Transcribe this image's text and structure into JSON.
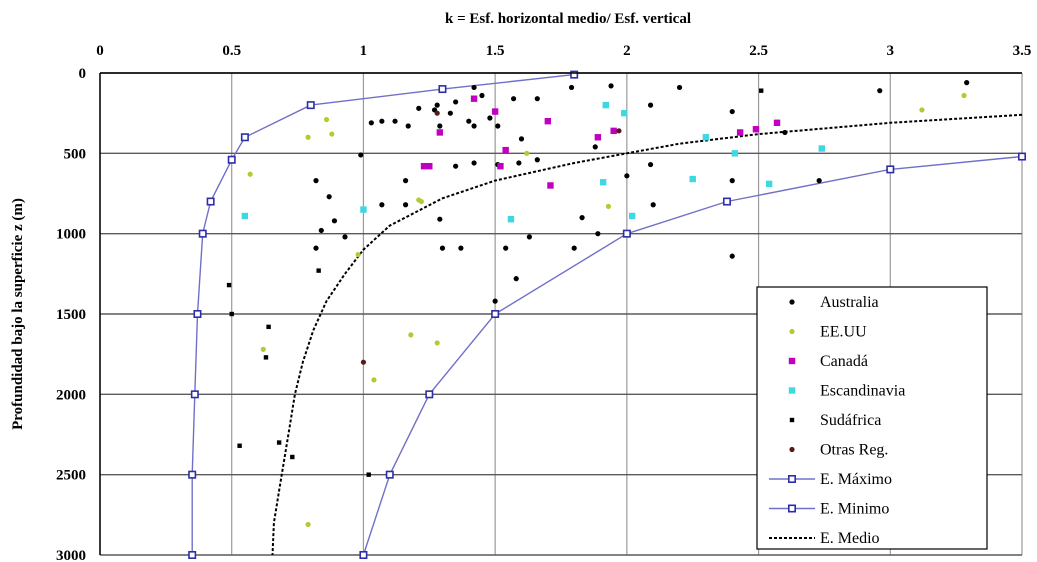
{
  "chart_data": {
    "type": "scatter",
    "title": "k = Esf. horizontal medio/ Esf. vertical",
    "xlabel": "",
    "ylabel": "Profundidad bajo la superficie  z (m)",
    "xlim": [
      0,
      3.5
    ],
    "ylim": [
      0,
      3000
    ],
    "y_inverted": true,
    "x_axis_position": "top",
    "x_ticks": [
      "0",
      "0.5",
      "1",
      "1.5",
      "2",
      "2.5",
      "3",
      "3.5"
    ],
    "y_ticks": [
      "0",
      "500",
      "1000",
      "1500",
      "2000",
      "2500",
      "3000"
    ],
    "grid": "horizontal and vertical",
    "legend_position": "bottom-right",
    "series": [
      {
        "name": "Australia",
        "kind": "points",
        "marker": "dot",
        "color": "#000000",
        "x": [
          1.42,
          1.45,
          1.35,
          1.28,
          1.12,
          1.03,
          1.07,
          1.21,
          1.27,
          1.33,
          1.4,
          1.48,
          1.57,
          1.66,
          1.79,
          1.94,
          2.09,
          2.2,
          2.4,
          2.6,
          2.96,
          3.29,
          1.17,
          1.29,
          1.42,
          1.51,
          1.6,
          1.66,
          1.88,
          2.0,
          2.09,
          2.4,
          2.73,
          0.82,
          0.93,
          1.16,
          1.3,
          1.58,
          1.37,
          1.54,
          1.63,
          1.8,
          1.89,
          1.83,
          2.1,
          0.87,
          0.84,
          0.82,
          0.99,
          0.89,
          1.07,
          1.16,
          1.29,
          1.35,
          1.42,
          1.51,
          1.59,
          1.5,
          2.4
        ],
        "y": [
          90,
          140,
          180,
          200,
          300,
          310,
          300,
          220,
          230,
          250,
          300,
          280,
          160,
          160,
          90,
          80,
          200,
          90,
          240,
          370,
          110,
          60,
          330,
          330,
          330,
          330,
          410,
          540,
          460,
          640,
          570,
          670,
          670,
          1090,
          1020,
          820,
          1090,
          1280,
          1090,
          1090,
          1020,
          1090,
          1000,
          900,
          820,
          770,
          980,
          670,
          510,
          920,
          820,
          670,
          910,
          580,
          560,
          570,
          560,
          1420,
          1140
        ]
      },
      {
        "name": "EE.UU",
        "kind": "points",
        "marker": "dot",
        "color": "#b5c935",
        "x": [
          0.86,
          0.88,
          0.79,
          0.57,
          0.98,
          1.21,
          1.22,
          1.62,
          1.93,
          0.62,
          1.18,
          1.28,
          1.04,
          0.79,
          3.12,
          3.28
        ],
        "y": [
          290,
          380,
          400,
          630,
          1130,
          790,
          800,
          500,
          830,
          1720,
          1630,
          1680,
          1910,
          2810,
          230,
          140
        ]
      },
      {
        "name": "Canadá",
        "kind": "points",
        "marker": "square",
        "color": "#c000c0",
        "x": [
          1.42,
          1.29,
          1.5,
          1.7,
          1.54,
          1.23,
          1.25,
          1.52,
          1.71,
          1.89,
          1.95,
          2.43,
          2.49,
          2.57
        ],
        "y": [
          160,
          370,
          240,
          300,
          480,
          580,
          580,
          580,
          700,
          400,
          360,
          370,
          350,
          310
        ]
      },
      {
        "name": "Escandinavia",
        "kind": "points",
        "marker": "square",
        "color": "#40d8e0",
        "x": [
          0.55,
          1.0,
          1.56,
          1.91,
          1.92,
          1.99,
          2.02,
          2.25,
          2.3,
          2.41,
          2.54,
          2.74
        ],
        "y": [
          890,
          850,
          910,
          680,
          200,
          250,
          890,
          660,
          400,
          500,
          690,
          470
        ]
      },
      {
        "name": "Sudáfrica",
        "kind": "points",
        "marker": "x",
        "color": "#000000",
        "x": [
          0.49,
          0.5,
          0.64,
          0.63,
          0.83,
          0.53,
          0.68,
          0.73,
          1.02,
          2.51
        ],
        "y": [
          1320,
          1500,
          1580,
          1770,
          1230,
          2320,
          2300,
          2390,
          2500,
          110
        ]
      },
      {
        "name": "Otras Reg.",
        "kind": "points",
        "marker": "dot",
        "color": "#5a1a1a",
        "x": [
          1.0,
          1.97,
          1.28
        ],
        "y": [
          1800,
          360,
          250
        ]
      },
      {
        "name": "E. Máximo",
        "kind": "line",
        "marker": "square-open",
        "color": "#7070c8",
        "x": [
          1.8,
          1.3,
          0.8,
          0.55,
          0.5,
          0.42,
          0.39,
          0.37,
          0.36,
          0.35,
          0.35
        ],
        "y": [
          10,
          100,
          200,
          400,
          540,
          800,
          1000,
          1500,
          2000,
          2500,
          3000
        ]
      },
      {
        "name": "E. Minimo",
        "kind": "line",
        "marker": "square-open",
        "color": "#7070c8",
        "x": [
          3.5,
          3.0,
          2.38,
          2.0,
          1.5,
          1.25,
          1.1,
          1.0
        ],
        "y": [
          520,
          600,
          800,
          1000,
          1500,
          2000,
          2500,
          3000
        ]
      },
      {
        "name": "E. Medio",
        "kind": "line",
        "marker": "none",
        "dash": true,
        "color": "#000000",
        "x": [
          3.5,
          3.0,
          2.5,
          2.2,
          2.0,
          1.8,
          1.5,
          1.3,
          1.1,
          1.0,
          0.93,
          0.86,
          0.81,
          0.77,
          0.74,
          0.72,
          0.7,
          0.68,
          0.66,
          0.655
        ],
        "y": [
          260,
          310,
          380,
          440,
          500,
          560,
          670,
          780,
          950,
          1100,
          1250,
          1420,
          1600,
          1800,
          2000,
          2200,
          2400,
          2600,
          2800,
          3000
        ]
      }
    ]
  }
}
